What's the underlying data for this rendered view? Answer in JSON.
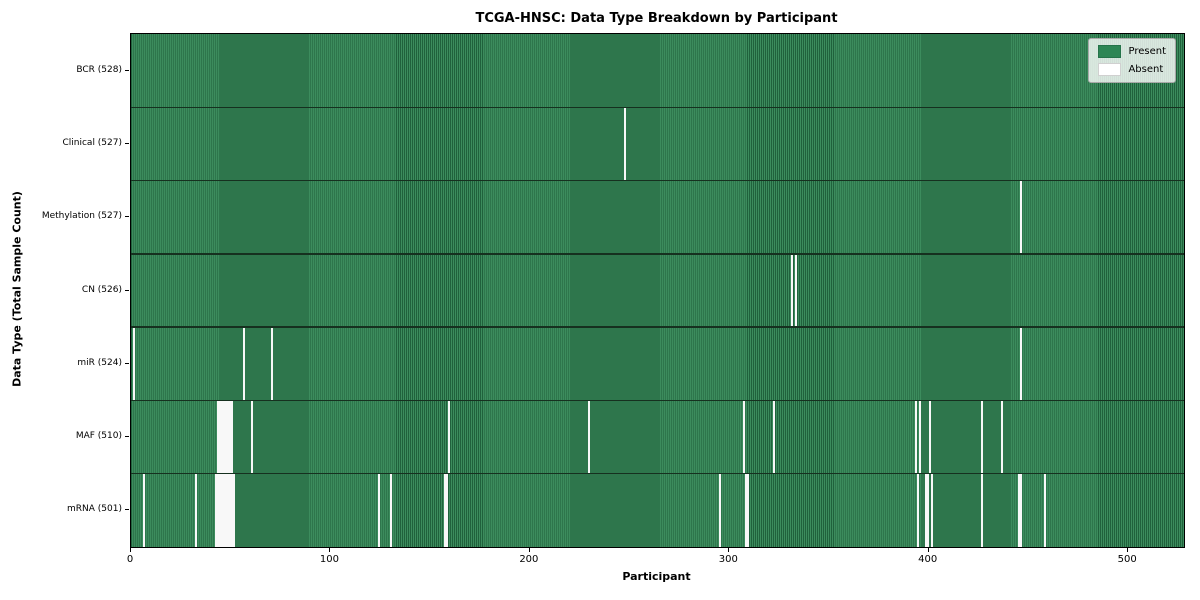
{
  "figure": {
    "title": "TCGA-HNSC: Data Type Breakdown by Participant"
  },
  "axes": {
    "xlabel": "Participant",
    "ylabel": "Data Type (Total Sample Count)",
    "x_ticks": [
      0,
      100,
      200,
      300,
      400,
      500
    ],
    "x_max": 528
  },
  "legend": {
    "items": [
      {
        "label": "Present",
        "color": "#2e8655"
      },
      {
        "label": "Absent",
        "color": "#ffffff"
      }
    ]
  },
  "colors": {
    "present_light": "#3c8c5d",
    "present_dark": "#20613c",
    "absent": "#f8f8f8",
    "row_separator": "#16301f"
  },
  "chart_data": {
    "type": "heatmap",
    "title": "TCGA-HNSC: Data Type Breakdown by Participant",
    "xlabel": "Participant",
    "ylabel": "Data Type (Total Sample Count)",
    "x_range": [
      0,
      528
    ],
    "legend_position": "upper right",
    "cell_states": [
      "Present",
      "Absent"
    ],
    "rows": [
      {
        "label": "BCR (528)",
        "data_type": "BCR",
        "total_samples": 528,
        "absent_participants": []
      },
      {
        "label": "Clinical (527)",
        "data_type": "Clinical",
        "total_samples": 527,
        "absent_participants": [
          247
        ]
      },
      {
        "label": "Methylation (527)",
        "data_type": "Methylation",
        "total_samples": 527,
        "absent_participants": [
          446
        ]
      },
      {
        "label": "CN (526)",
        "data_type": "CN",
        "total_samples": 526,
        "absent_participants": [
          331,
          333
        ]
      },
      {
        "label": "miR (524)",
        "data_type": "miR",
        "total_samples": 524,
        "absent_participants": [
          1,
          56,
          70,
          446
        ]
      },
      {
        "label": "MAF (510)",
        "data_type": "MAF",
        "total_samples": 510,
        "absent_participants": [
          43,
          44,
          45,
          46,
          47,
          48,
          49,
          50,
          60,
          159,
          229,
          307,
          322,
          393,
          395,
          400,
          426,
          436
        ]
      },
      {
        "label": "mRNA (501)",
        "data_type": "mRNA",
        "total_samples": 501,
        "absent_participants": [
          6,
          32,
          42,
          43,
          44,
          45,
          46,
          47,
          48,
          49,
          50,
          51,
          124,
          130,
          157,
          158,
          295,
          308,
          309,
          394,
          398,
          399,
          401,
          426,
          445,
          446,
          458
        ]
      }
    ]
  }
}
